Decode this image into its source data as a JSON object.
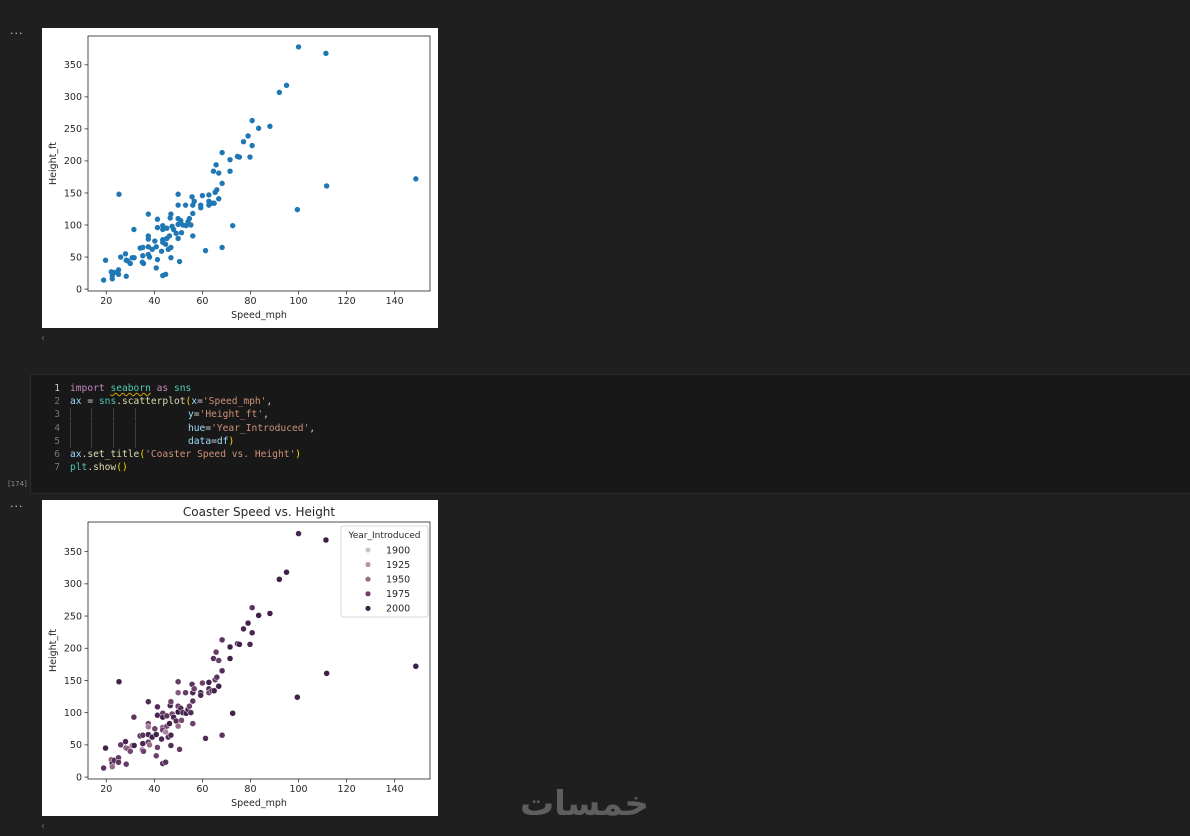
{
  "cells": {
    "output1_menu": "...",
    "output2_menu": "...",
    "execution_count": "[174]",
    "collapse_icon": "‹"
  },
  "code": {
    "lines": [
      {
        "num": "1",
        "guides": 0,
        "tokens": [
          {
            "t": "import",
            "c": "keyword"
          },
          {
            "t": " ",
            "c": "plain"
          },
          {
            "t": "seaborn",
            "c": "module",
            "sq": true
          },
          {
            "t": " ",
            "c": "plain"
          },
          {
            "t": "as",
            "c": "keyword"
          },
          {
            "t": " ",
            "c": "plain"
          },
          {
            "t": "sns",
            "c": "module"
          }
        ]
      },
      {
        "num": "2",
        "guides": 0,
        "tokens": [
          {
            "t": "ax",
            "c": "var"
          },
          {
            "t": " = ",
            "c": "op"
          },
          {
            "t": "sns",
            "c": "module"
          },
          {
            "t": ".",
            "c": "plain"
          },
          {
            "t": "scatterplot",
            "c": "func"
          },
          {
            "t": "(",
            "c": "bracket"
          },
          {
            "t": "x",
            "c": "param"
          },
          {
            "t": "=",
            "c": "op"
          },
          {
            "t": "'Speed_mph'",
            "c": "string"
          },
          {
            "t": ",",
            "c": "plain"
          }
        ]
      },
      {
        "num": "3",
        "guides": 4,
        "tokens": [
          {
            "t": "y",
            "c": "param"
          },
          {
            "t": "=",
            "c": "op"
          },
          {
            "t": "'Height_ft'",
            "c": "string"
          },
          {
            "t": ",",
            "c": "plain"
          }
        ]
      },
      {
        "num": "4",
        "guides": 4,
        "tokens": [
          {
            "t": "hue",
            "c": "param"
          },
          {
            "t": "=",
            "c": "op"
          },
          {
            "t": "'Year_Introduced'",
            "c": "string"
          },
          {
            "t": ",",
            "c": "plain"
          }
        ]
      },
      {
        "num": "5",
        "guides": 4,
        "tokens": [
          {
            "t": "data",
            "c": "param"
          },
          {
            "t": "=",
            "c": "op"
          },
          {
            "t": "df",
            "c": "var"
          },
          {
            "t": ")",
            "c": "bracket"
          }
        ]
      },
      {
        "num": "6",
        "guides": 0,
        "tokens": [
          {
            "t": "ax",
            "c": "var"
          },
          {
            "t": ".",
            "c": "plain"
          },
          {
            "t": "set_title",
            "c": "func"
          },
          {
            "t": "(",
            "c": "bracket"
          },
          {
            "t": "'Coaster Speed vs. Height'",
            "c": "string"
          },
          {
            "t": ")",
            "c": "bracket"
          }
        ]
      },
      {
        "num": "7",
        "guides": 0,
        "tokens": [
          {
            "t": "plt",
            "c": "module"
          },
          {
            "t": ".",
            "c": "plain"
          },
          {
            "t": "show",
            "c": "func"
          },
          {
            "t": "()",
            "c": "bracket"
          }
        ]
      }
    ]
  },
  "watermark": "خمسات",
  "colors": {
    "point": "#1f77b4",
    "hue_1900": "#cfc1c6",
    "hue_1925": "#b594a5",
    "hue_1950": "#986a88",
    "hue_1975": "#6e406c",
    "hue_2000": "#3f2149"
  },
  "chart_data": [
    {
      "type": "scatter",
      "title": "",
      "xlabel": "Speed_mph",
      "ylabel": "Height_ft",
      "xlim": [
        12.4,
        154.7
      ],
      "ylim": [
        -3,
        395
      ],
      "xticks": [
        "20",
        "40",
        "60",
        "80",
        "100",
        "120",
        "140"
      ],
      "yticks": [
        "0",
        "50",
        "100",
        "150",
        "200",
        "250",
        "300",
        "350"
      ],
      "grid": false,
      "color": "#1f77b4"
    },
    {
      "type": "scatter",
      "title": "Coaster Speed vs. Height",
      "xlabel": "Speed_mph",
      "ylabel": "Height_ft",
      "hue": "Year_Introduced",
      "legend_title": "Year_Introduced",
      "legend_position": "upper right",
      "legend_entries": [
        "1900",
        "1925",
        "1950",
        "1975",
        "2000"
      ],
      "xlim": [
        12.4,
        154.7
      ],
      "ylim": [
        -3,
        396
      ],
      "xticks": [
        "20",
        "40",
        "60",
        "80",
        "100",
        "120",
        "140"
      ],
      "yticks": [
        "0",
        "50",
        "100",
        "150",
        "200",
        "250",
        "300",
        "350"
      ],
      "grid": false
    }
  ],
  "points": [
    [
      18.9,
      14,
      1985
    ],
    [
      19.7,
      45,
      2000
    ],
    [
      22.1,
      27,
      1960
    ],
    [
      22.5,
      21,
      2005
    ],
    [
      22.5,
      16,
      1950
    ],
    [
      23.3,
      26,
      1990
    ],
    [
      25.1,
      30,
      1980
    ],
    [
      25.1,
      23,
      1985
    ],
    [
      25.3,
      148,
      2000
    ],
    [
      26,
      50,
      1980
    ],
    [
      28,
      55,
      1995
    ],
    [
      28.3,
      20,
      1980
    ],
    [
      28.3,
      45,
      2000
    ],
    [
      28.9,
      44,
      1960
    ],
    [
      30,
      40,
      1970
    ],
    [
      30.8,
      49,
      1950
    ],
    [
      31.6,
      49,
      2000
    ],
    [
      31.5,
      93,
      1985
    ],
    [
      34.1,
      64,
      1990
    ],
    [
      35.2,
      65,
      1985
    ],
    [
      35.2,
      52,
      1995
    ],
    [
      35,
      42,
      1955
    ],
    [
      35.5,
      40,
      1975
    ],
    [
      37.5,
      117,
      1990
    ],
    [
      37.5,
      83,
      1975
    ],
    [
      37.5,
      78,
      1940
    ],
    [
      37.5,
      66,
      1995
    ],
    [
      37.5,
      54,
      1985
    ],
    [
      38,
      50,
      1950
    ],
    [
      39.1,
      62,
      2000
    ],
    [
      40.2,
      75,
      1975
    ],
    [
      40.8,
      66,
      2000
    ],
    [
      40.8,
      33,
      1975
    ],
    [
      41.3,
      46,
      1975
    ],
    [
      41.3,
      109,
      1990
    ],
    [
      41.3,
      96,
      1995
    ],
    [
      43,
      59,
      1995
    ],
    [
      43.5,
      99,
      1980
    ],
    [
      43.5,
      93,
      2000
    ],
    [
      43.5,
      77,
      1965
    ],
    [
      43.5,
      73,
      1980
    ],
    [
      43.5,
      21,
      1990
    ],
    [
      44.7,
      23,
      1985
    ],
    [
      44.7,
      70,
      1935
    ],
    [
      45.2,
      95,
      1985
    ],
    [
      45.2,
      79,
      1970
    ],
    [
      45.8,
      62,
      1990
    ],
    [
      46.3,
      83,
      2000
    ],
    [
      46.6,
      111,
      1995
    ],
    [
      46.9,
      117,
      1975
    ],
    [
      46.9,
      65,
      1995
    ],
    [
      46.9,
      49,
      1990
    ],
    [
      47.4,
      98,
      1970
    ],
    [
      48,
      93,
      1995
    ],
    [
      49.1,
      87,
      1990
    ],
    [
      49.9,
      148,
      1980
    ],
    [
      49.9,
      131,
      1960
    ],
    [
      49.9,
      110,
      1980
    ],
    [
      49.9,
      101,
      2005
    ],
    [
      49.9,
      79,
      1950
    ],
    [
      50.5,
      43,
      1980
    ],
    [
      51,
      107,
      1990
    ],
    [
      51.3,
      88,
      1970
    ],
    [
      51.9,
      100,
      1995
    ],
    [
      53,
      131,
      1980
    ],
    [
      53.2,
      99,
      2000
    ],
    [
      54,
      105,
      1995
    ],
    [
      54.6,
      110,
      1975
    ],
    [
      55.2,
      100,
      1990
    ],
    [
      55.7,
      144,
      1985
    ],
    [
      56,
      131,
      1995
    ],
    [
      56,
      118,
      1985
    ],
    [
      56,
      83,
      1975
    ],
    [
      56.6,
      137,
      1975
    ],
    [
      59.3,
      131,
      2000
    ],
    [
      59.3,
      127,
      1995
    ],
    [
      60,
      146,
      1975
    ],
    [
      61.3,
      60,
      1990
    ],
    [
      62.7,
      147,
      2000
    ],
    [
      62.7,
      137,
      1990
    ],
    [
      62.7,
      131,
      1970
    ],
    [
      64,
      134,
      1990
    ],
    [
      64.9,
      134,
      2000
    ],
    [
      65.3,
      151,
      1980
    ],
    [
      66,
      155,
      1985
    ],
    [
      66.8,
      141,
      2000
    ],
    [
      64.6,
      184,
      1985
    ],
    [
      65.7,
      194,
      1980
    ],
    [
      66.8,
      181,
      1975
    ],
    [
      68.2,
      165,
      1990
    ],
    [
      68.2,
      65,
      1985
    ],
    [
      68.2,
      213,
      1985
    ],
    [
      71.5,
      184,
      2000
    ],
    [
      71.5,
      202,
      2000
    ],
    [
      72.6,
      99,
      2000
    ],
    [
      74.6,
      207,
      1990
    ],
    [
      75.4,
      206,
      2000
    ],
    [
      77.1,
      230,
      1995
    ],
    [
      79,
      239,
      2000
    ],
    [
      79.8,
      206,
      1995
    ],
    [
      80.7,
      263,
      1985
    ],
    [
      80.7,
      224,
      1995
    ],
    [
      83.4,
      251,
      2000
    ],
    [
      88.1,
      254,
      2000
    ],
    [
      92,
      307,
      2000
    ],
    [
      95,
      318,
      2000
    ],
    [
      99.5,
      124,
      2000
    ],
    [
      100,
      378,
      1995
    ],
    [
      111.4,
      368,
      2003
    ],
    [
      111.7,
      161,
      2000
    ],
    [
      148.8,
      172,
      2001
    ]
  ]
}
